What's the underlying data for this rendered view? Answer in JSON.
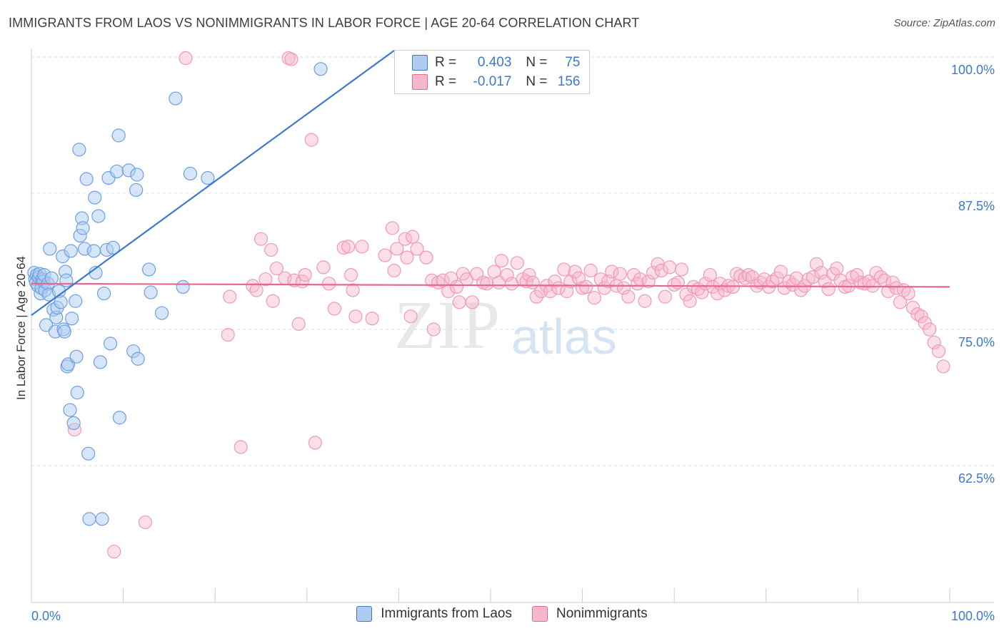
{
  "title": "IMMIGRANTS FROM LAOS VS NONIMMIGRANTS IN LABOR FORCE | AGE 20-64 CORRELATION CHART",
  "source": "Source: ZipAtlas.com",
  "watermark": {
    "zip": "ZIP",
    "atlas": "atlas"
  },
  "legend": {
    "r_label": "R =",
    "n_label": "N =",
    "series1": {
      "r": "0.403",
      "n": "75"
    },
    "series2": {
      "r": "-0.017",
      "n": "156"
    }
  },
  "colors": {
    "blue": "#3b78d0",
    "blue_fill": "#aecbf0",
    "pink": "#e8668f",
    "pink_fill": "#f6b6cb"
  },
  "chart_data": {
    "type": "scatter",
    "title": "IMMIGRANTS FROM LAOS VS NONIMMIGRANTS IN LABOR FORCE | AGE 20-64 CORRELATION CHART",
    "xlabel": "",
    "ylabel": "In Labor Force | Age 20-64",
    "xlim": [
      0,
      100
    ],
    "ylim": [
      50,
      101
    ],
    "x_tick_labels": [
      "0.0%",
      "100.0%"
    ],
    "y_ticks": [
      62.5,
      75.0,
      87.5,
      100.0
    ],
    "y_tick_labels": [
      "62.5%",
      "75.0%",
      "87.5%",
      "100.0%"
    ],
    "grid": true,
    "legend_position": "top-center",
    "series": [
      {
        "name": "Immigrants from Laos",
        "color": "#3b78d0",
        "trend": {
          "x": [
            0,
            39.5
          ],
          "y": [
            76.3,
            100.6
          ]
        },
        "points": [
          [
            0.3,
            80.2
          ],
          [
            0.4,
            79.6
          ],
          [
            0.5,
            79.3
          ],
          [
            0.6,
            80.0
          ],
          [
            0.7,
            79.0
          ],
          [
            0.8,
            79.8
          ],
          [
            0.9,
            80.1
          ],
          [
            1.0,
            78.3
          ],
          [
            1.1,
            78.8
          ],
          [
            1.2,
            79.6
          ],
          [
            1.3,
            79.4
          ],
          [
            1.4,
            80.0
          ],
          [
            1.5,
            78.6
          ],
          [
            1.6,
            75.4
          ],
          [
            1.8,
            79.2
          ],
          [
            1.9,
            78.2
          ],
          [
            2.0,
            82.4
          ],
          [
            2.2,
            79.7
          ],
          [
            2.4,
            76.8
          ],
          [
            2.6,
            74.8
          ],
          [
            2.7,
            76.1
          ],
          [
            2.8,
            77.0
          ],
          [
            3.0,
            78.5
          ],
          [
            3.2,
            77.5
          ],
          [
            3.4,
            81.7
          ],
          [
            3.5,
            75.0
          ],
          [
            3.6,
            74.8
          ],
          [
            3.7,
            80.3
          ],
          [
            3.8,
            79.5
          ],
          [
            3.9,
            71.6
          ],
          [
            4.0,
            71.8
          ],
          [
            4.2,
            67.6
          ],
          [
            4.3,
            82.2
          ],
          [
            4.4,
            76.0
          ],
          [
            4.6,
            66.4
          ],
          [
            4.8,
            77.6
          ],
          [
            4.9,
            72.5
          ],
          [
            5.0,
            69.2
          ],
          [
            5.2,
            91.5
          ],
          [
            5.3,
            83.6
          ],
          [
            5.5,
            85.2
          ],
          [
            5.6,
            84.3
          ],
          [
            5.8,
            82.4
          ],
          [
            6.0,
            88.8
          ],
          [
            6.2,
            63.6
          ],
          [
            6.3,
            57.6
          ],
          [
            6.8,
            82.2
          ],
          [
            6.9,
            87.1
          ],
          [
            7.0,
            80.2
          ],
          [
            7.3,
            85.4
          ],
          [
            7.5,
            72.0
          ],
          [
            7.7,
            57.6
          ],
          [
            7.9,
            78.3
          ],
          [
            8.2,
            82.3
          ],
          [
            8.4,
            88.9
          ],
          [
            8.6,
            73.7
          ],
          [
            8.9,
            82.5
          ],
          [
            9.3,
            89.5
          ],
          [
            9.5,
            92.8
          ],
          [
            9.6,
            66.9
          ],
          [
            10.6,
            89.6
          ],
          [
            11.1,
            73.0
          ],
          [
            11.4,
            87.8
          ],
          [
            11.5,
            89.2
          ],
          [
            11.6,
            72.3
          ],
          [
            12.8,
            80.5
          ],
          [
            13.0,
            78.4
          ],
          [
            14.2,
            76.5
          ],
          [
            15.7,
            96.2
          ],
          [
            16.5,
            78.9
          ],
          [
            17.3,
            89.3
          ],
          [
            19.2,
            88.9
          ],
          [
            31.5,
            98.9
          ]
        ]
      },
      {
        "name": "Nonimmigrants",
        "color": "#e8668f",
        "trend": {
          "x": [
            0,
            100
          ],
          "y": [
            79.2,
            78.9
          ]
        },
        "points": [
          [
            4.7,
            65.8
          ],
          [
            9.0,
            54.6
          ],
          [
            12.4,
            57.3
          ],
          [
            16.8,
            99.9
          ],
          [
            21.4,
            74.5
          ],
          [
            21.6,
            78.0
          ],
          [
            22.8,
            64.2
          ],
          [
            24.1,
            79.0
          ],
          [
            24.5,
            78.6
          ],
          [
            25.0,
            83.3
          ],
          [
            25.5,
            79.6
          ],
          [
            26.1,
            82.3
          ],
          [
            26.3,
            77.6
          ],
          [
            26.7,
            80.6
          ],
          [
            27.6,
            79.7
          ],
          [
            28.0,
            99.9
          ],
          [
            28.3,
            99.8
          ],
          [
            28.6,
            79.5
          ],
          [
            29.1,
            75.5
          ],
          [
            29.5,
            79.4
          ],
          [
            29.8,
            80.0
          ],
          [
            30.5,
            92.4
          ],
          [
            30.9,
            64.6
          ],
          [
            31.8,
            80.7
          ],
          [
            32.4,
            79.2
          ],
          [
            33.0,
            76.9
          ],
          [
            34.0,
            82.5
          ],
          [
            34.5,
            82.6
          ],
          [
            34.8,
            80.0
          ],
          [
            35.0,
            78.6
          ],
          [
            35.3,
            76.2
          ],
          [
            36.0,
            82.6
          ],
          [
            37.1,
            76.0
          ],
          [
            38.5,
            81.8
          ],
          [
            39.3,
            84.3
          ],
          [
            39.5,
            80.4
          ],
          [
            39.8,
            82.4
          ],
          [
            40.7,
            83.3
          ],
          [
            40.9,
            81.6
          ],
          [
            41.3,
            76.2
          ],
          [
            41.5,
            83.5
          ],
          [
            42.0,
            82.4
          ],
          [
            43.0,
            81.6
          ],
          [
            43.6,
            79.5
          ],
          [
            43.8,
            75.0
          ],
          [
            44.3,
            79.3
          ],
          [
            44.8,
            79.5
          ],
          [
            45.4,
            78.5
          ],
          [
            45.7,
            79.7
          ],
          [
            46.3,
            78.9
          ],
          [
            46.6,
            77.5
          ],
          [
            47.0,
            80.1
          ],
          [
            47.4,
            79.6
          ],
          [
            48.0,
            77.5
          ],
          [
            48.5,
            80.1
          ],
          [
            49.2,
            79.3
          ],
          [
            49.6,
            79.2
          ],
          [
            50.4,
            80.3
          ],
          [
            50.9,
            79.3
          ],
          [
            51.2,
            81.3
          ],
          [
            51.8,
            80.0
          ],
          [
            52.3,
            79.2
          ],
          [
            52.9,
            81.1
          ],
          [
            53.5,
            79.6
          ],
          [
            53.9,
            79.4
          ],
          [
            54.2,
            80.0
          ],
          [
            54.6,
            79.3
          ],
          [
            55.0,
            78.0
          ],
          [
            55.5,
            78.5
          ],
          [
            56.1,
            79.0
          ],
          [
            56.5,
            78.5
          ],
          [
            57.0,
            79.4
          ],
          [
            57.4,
            78.8
          ],
          [
            58.0,
            80.5
          ],
          [
            58.3,
            78.5
          ],
          [
            58.7,
            79.4
          ],
          [
            59.2,
            80.3
          ],
          [
            59.6,
            79.7
          ],
          [
            60.0,
            78.8
          ],
          [
            60.4,
            78.9
          ],
          [
            60.9,
            80.4
          ],
          [
            61.3,
            77.9
          ],
          [
            62.0,
            79.6
          ],
          [
            62.4,
            78.8
          ],
          [
            62.8,
            79.4
          ],
          [
            63.2,
            80.3
          ],
          [
            63.7,
            79.0
          ],
          [
            64.1,
            80.1
          ],
          [
            64.5,
            78.8
          ],
          [
            65.0,
            78.0
          ],
          [
            65.6,
            80.0
          ],
          [
            66.0,
            79.2
          ],
          [
            66.3,
            79.6
          ],
          [
            66.8,
            77.6
          ],
          [
            67.2,
            79.4
          ],
          [
            67.7,
            80.2
          ],
          [
            68.2,
            81.0
          ],
          [
            68.6,
            80.4
          ],
          [
            69.0,
            78.0
          ],
          [
            69.5,
            80.7
          ],
          [
            70.0,
            79.1
          ],
          [
            70.4,
            79.3
          ],
          [
            70.8,
            80.5
          ],
          [
            71.3,
            78.2
          ],
          [
            71.7,
            77.6
          ],
          [
            72.1,
            78.9
          ],
          [
            72.6,
            78.7
          ],
          [
            73.0,
            78.4
          ],
          [
            73.4,
            79.2
          ],
          [
            73.9,
            80.0
          ],
          [
            74.2,
            78.9
          ],
          [
            74.7,
            78.3
          ],
          [
            75.0,
            79.2
          ],
          [
            75.5,
            78.6
          ],
          [
            75.9,
            79.0
          ],
          [
            76.4,
            78.9
          ],
          [
            76.8,
            80.1
          ],
          [
            77.2,
            79.9
          ],
          [
            77.7,
            79.7
          ],
          [
            78.1,
            80.0
          ],
          [
            78.5,
            79.8
          ],
          [
            79.0,
            79.0
          ],
          [
            79.4,
            79.3
          ],
          [
            79.8,
            79.6
          ],
          [
            80.3,
            78.9
          ],
          [
            80.7,
            79.4
          ],
          [
            81.2,
            79.7
          ],
          [
            81.6,
            80.3
          ],
          [
            82.0,
            78.8
          ],
          [
            82.5,
            79.4
          ],
          [
            82.9,
            79.1
          ],
          [
            83.3,
            79.7
          ],
          [
            83.8,
            78.6
          ],
          [
            84.2,
            79.0
          ],
          [
            84.6,
            79.6
          ],
          [
            85.1,
            79.8
          ],
          [
            85.5,
            81.0
          ],
          [
            86.0,
            80.2
          ],
          [
            86.4,
            79.4
          ],
          [
            86.8,
            78.7
          ],
          [
            87.3,
            80.1
          ],
          [
            87.7,
            80.6
          ],
          [
            88.1,
            79.5
          ],
          [
            88.6,
            78.9
          ],
          [
            89.0,
            79.0
          ],
          [
            89.4,
            79.8
          ],
          [
            89.9,
            80.0
          ],
          [
            90.3,
            79.3
          ],
          [
            90.7,
            79.2
          ],
          [
            91.2,
            79.4
          ],
          [
            91.6,
            79.0
          ],
          [
            92.0,
            80.2
          ],
          [
            92.5,
            79.8
          ],
          [
            92.9,
            79.5
          ],
          [
            93.3,
            78.5
          ],
          [
            93.8,
            79.3
          ],
          [
            94.2,
            78.8
          ],
          [
            94.6,
            77.5
          ],
          [
            95.0,
            78.6
          ],
          [
            95.5,
            78.3
          ],
          [
            96.0,
            77.0
          ],
          [
            96.5,
            76.4
          ],
          [
            96.9,
            76.2
          ],
          [
            97.3,
            75.6
          ],
          [
            97.8,
            75.0
          ],
          [
            98.3,
            73.8
          ],
          [
            98.8,
            73.0
          ],
          [
            99.3,
            71.6
          ]
        ]
      }
    ]
  },
  "bottom_legend": {
    "item1": "Immigrants from Laos",
    "item2": "Nonimmigrants"
  }
}
